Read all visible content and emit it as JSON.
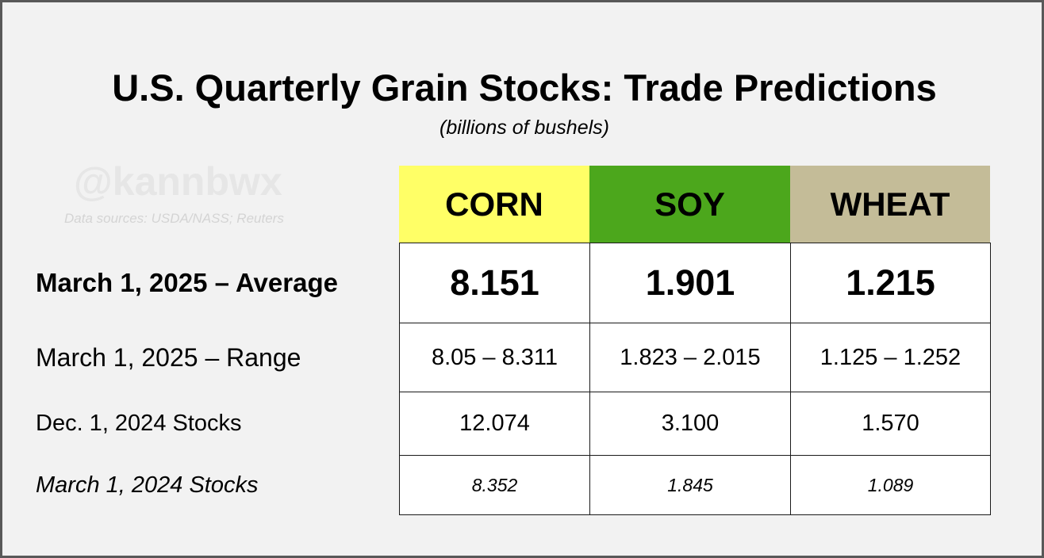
{
  "header": {
    "title": "U.S. Quarterly Grain Stocks: Trade Predictions",
    "subtitle": "(billions  of bushels)",
    "watermark": "@kannbwx",
    "sources": "Data sources: USDA/NASS; Reuters"
  },
  "colors": {
    "corn": "#ffff66",
    "soy": "#4ca71c",
    "wheat": "#c4bc98",
    "background": "#f2f2f2",
    "border": "#595959"
  },
  "chart_data": {
    "type": "table",
    "title": "U.S. Quarterly Grain Stocks: Trade Predictions",
    "subtitle": "(billions  of bushels)",
    "columns": [
      "CORN",
      "SOY",
      "WHEAT"
    ],
    "rows": [
      {
        "label": "March 1, 2025 – Average",
        "values": [
          "8.151",
          "1.901",
          "1.215"
        ]
      },
      {
        "label": "March 1, 2025 – Range",
        "values": [
          "8.05 – 8.311",
          "1.823 – 2.015",
          "1.125 – 1.252"
        ]
      },
      {
        "label": "Dec. 1, 2024 Stocks",
        "values": [
          "12.074",
          "3.100",
          "1.570"
        ]
      },
      {
        "label": "March 1, 2024 Stocks",
        "values": [
          "8.352",
          "1.845",
          "1.089"
        ]
      }
    ]
  }
}
